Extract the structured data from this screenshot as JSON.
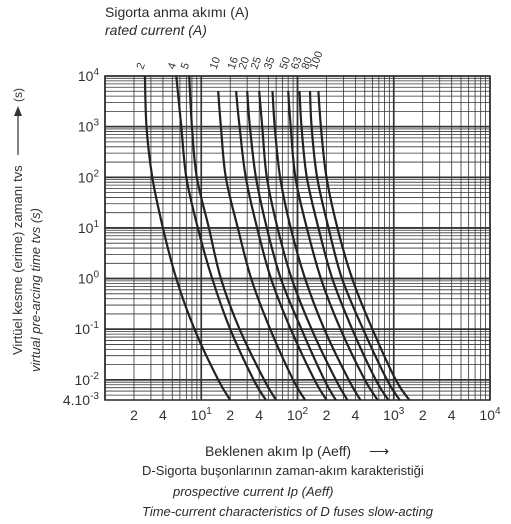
{
  "header": {
    "title_tr": "Sigorta anma akımı (A)",
    "title_en": "rated current (A)"
  },
  "yaxis": {
    "label_tr": "Virtüel kesme (erime) zamanı tvs",
    "label_en": "virtual pre-arcing time tvs (s)",
    "unit": "(s)"
  },
  "xaxis": {
    "label": "Beklenen akım Ip (Aeff)",
    "arrow": "⟶"
  },
  "caption": {
    "line1": "D-Sigorta buşonlarının zaman-akım karakteristiği",
    "line2": "prospective current Ip (Aeff)",
    "line3": "Time-current characteristics of D fuses slow-acting"
  },
  "chart_data": {
    "type": "line",
    "xscale": "log",
    "yscale": "log",
    "xlim": [
      1,
      10000
    ],
    "ylim": [
      0.004,
      10000
    ],
    "grid": true,
    "x_tick_labels": [
      {
        "v": 2,
        "t": "2"
      },
      {
        "v": 4,
        "t": "4"
      },
      {
        "v": 10,
        "t": "10",
        "sup": "1"
      },
      {
        "v": 20,
        "t": "2"
      },
      {
        "v": 40,
        "t": "4"
      },
      {
        "v": 100,
        "t": "10",
        "sup": "2"
      },
      {
        "v": 200,
        "t": "2"
      },
      {
        "v": 400,
        "t": "4"
      },
      {
        "v": 1000,
        "t": "10",
        "sup": "3"
      },
      {
        "v": 2000,
        "t": "2"
      },
      {
        "v": 4000,
        "t": "4"
      },
      {
        "v": 10000,
        "t": "10",
        "sup": "4"
      }
    ],
    "y_tick_labels": [
      {
        "v": 10000,
        "t": "10",
        "sup": "4"
      },
      {
        "v": 1000,
        "t": "10",
        "sup": "3"
      },
      {
        "v": 100,
        "t": "10",
        "sup": "2"
      },
      {
        "v": 10,
        "t": "10",
        "sup": "1"
      },
      {
        "v": 1,
        "t": "10",
        "sup": "0"
      },
      {
        "v": 0.1,
        "t": "10",
        "sup": "-1"
      },
      {
        "v": 0.01,
        "t": "10",
        "sup": "-2"
      },
      {
        "v": 0.004,
        "t": "4.10",
        "sup": "-3"
      }
    ],
    "series": [
      {
        "label": "2",
        "points": [
          [
            2.6,
            10000
          ],
          [
            2.7,
            1000
          ],
          [
            3.1,
            100
          ],
          [
            4.0,
            10
          ],
          [
            5.5,
            1
          ],
          [
            8.5,
            0.1
          ],
          [
            15,
            0.01
          ],
          [
            20,
            0.004
          ]
        ]
      },
      {
        "label": "4",
        "points": [
          [
            5.5,
            10000
          ],
          [
            6.2,
            1000
          ],
          [
            7.0,
            100
          ],
          [
            9.2,
            10
          ],
          [
            13,
            1
          ],
          [
            20,
            0.1
          ],
          [
            35,
            0.01
          ],
          [
            47,
            0.004
          ]
        ]
      },
      {
        "label": "5",
        "points": [
          [
            7.5,
            10000
          ],
          [
            8.0,
            1000
          ],
          [
            9.0,
            100
          ],
          [
            12,
            10
          ],
          [
            16,
            1
          ],
          [
            25,
            0.1
          ],
          [
            45,
            0.01
          ],
          [
            60,
            0.004
          ]
        ]
      },
      {
        "label": "10",
        "points": [
          [
            15,
            5000
          ],
          [
            16,
            1000
          ],
          [
            18,
            100
          ],
          [
            24,
            10
          ],
          [
            33,
            1
          ],
          [
            52,
            0.1
          ],
          [
            90,
            0.01
          ],
          [
            120,
            0.004
          ]
        ]
      },
      {
        "label": "16",
        "points": [
          [
            23,
            5000
          ],
          [
            25,
            1000
          ],
          [
            29,
            100
          ],
          [
            38,
            10
          ],
          [
            53,
            1
          ],
          [
            85,
            0.1
          ],
          [
            150,
            0.01
          ],
          [
            200,
            0.004
          ]
        ]
      },
      {
        "label": "20",
        "points": [
          [
            30,
            5000
          ],
          [
            32,
            1000
          ],
          [
            37,
            100
          ],
          [
            48,
            10
          ],
          [
            67,
            1
          ],
          [
            110,
            0.1
          ],
          [
            190,
            0.01
          ],
          [
            250,
            0.004
          ]
        ]
      },
      {
        "label": "25",
        "points": [
          [
            40,
            5000
          ],
          [
            43,
            1000
          ],
          [
            48,
            100
          ],
          [
            62,
            10
          ],
          [
            87,
            1
          ],
          [
            140,
            0.1
          ],
          [
            250,
            0.01
          ],
          [
            330,
            0.004
          ]
        ]
      },
      {
        "label": "35",
        "points": [
          [
            55,
            5000
          ],
          [
            58,
            1000
          ],
          [
            66,
            100
          ],
          [
            85,
            10
          ],
          [
            120,
            1
          ],
          [
            190,
            0.1
          ],
          [
            340,
            0.01
          ],
          [
            450,
            0.004
          ]
        ]
      },
      {
        "label": "50",
        "points": [
          [
            80,
            5000
          ],
          [
            85,
            1000
          ],
          [
            95,
            100
          ],
          [
            125,
            10
          ],
          [
            175,
            1
          ],
          [
            280,
            0.1
          ],
          [
            500,
            0.01
          ],
          [
            680,
            0.004
          ]
        ]
      },
      {
        "label": "63",
        "points": [
          [
            105,
            5000
          ],
          [
            110,
            1000
          ],
          [
            125,
            100
          ],
          [
            165,
            10
          ],
          [
            230,
            1
          ],
          [
            370,
            0.1
          ],
          [
            650,
            0.01
          ],
          [
            880,
            0.004
          ]
        ]
      },
      {
        "label": "80",
        "points": [
          [
            135,
            5000
          ],
          [
            140,
            1000
          ],
          [
            160,
            100
          ],
          [
            210,
            10
          ],
          [
            290,
            1
          ],
          [
            480,
            0.1
          ],
          [
            850,
            0.01
          ],
          [
            1150,
            0.004
          ]
        ]
      },
      {
        "label": "100",
        "points": [
          [
            165,
            5000
          ],
          [
            175,
            1000
          ],
          [
            200,
            100
          ],
          [
            260,
            10
          ],
          [
            370,
            1
          ],
          [
            600,
            0.1
          ],
          [
            1050,
            0.01
          ],
          [
            1450,
            0.004
          ]
        ]
      }
    ]
  }
}
